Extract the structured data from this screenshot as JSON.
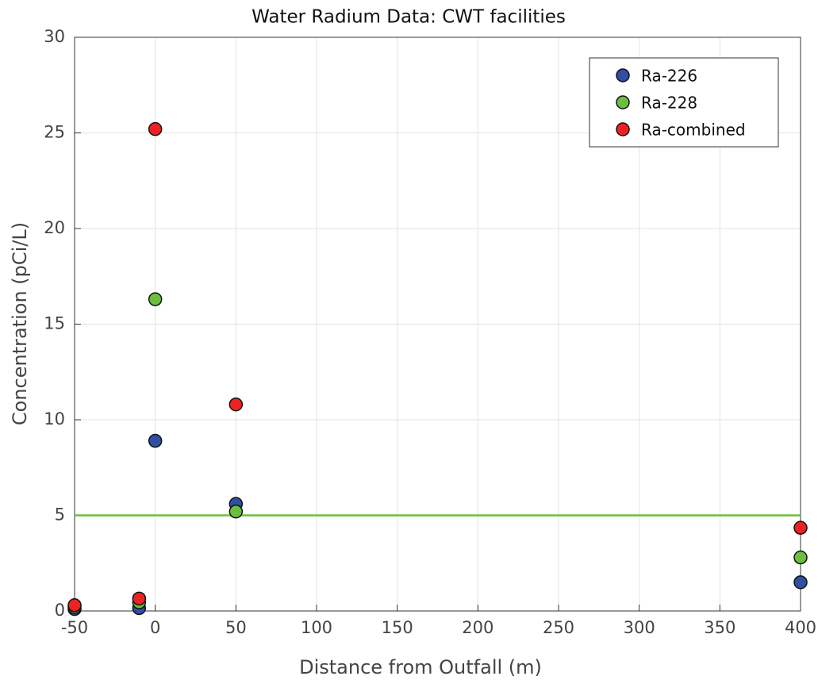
{
  "chart_data": {
    "type": "scatter",
    "title": "Water Radium Data: CWT facilities",
    "x_label": "Distance from Outfall (m)",
    "y_label": "Concentration (pCi/L)",
    "xlim": [
      -50,
      400
    ],
    "ylim": [
      0,
      30
    ],
    "xticks": [
      -50,
      0,
      50,
      100,
      150,
      200,
      250,
      300,
      350,
      400
    ],
    "yticks": [
      0,
      5,
      10,
      15,
      20,
      25,
      30
    ],
    "grid": true,
    "legend": "upper right",
    "series": [
      {
        "name": "Ra-226",
        "color": "#2f4fa3",
        "x": [
          -50,
          -10,
          0,
          50,
          400
        ],
        "values": [
          0.1,
          0.15,
          8.9,
          5.6,
          1.5
        ]
      },
      {
        "name": "Ra-228",
        "color": "#6cbf3c",
        "x": [
          -50,
          -10,
          0,
          50,
          400
        ],
        "values": [
          0.2,
          0.45,
          16.3,
          5.2,
          2.8
        ]
      },
      {
        "name": "Ra-combined",
        "color": "#ee2222",
        "x": [
          -50,
          -10,
          0,
          50,
          400
        ],
        "values": [
          0.3,
          0.65,
          25.2,
          10.8,
          4.35
        ]
      }
    ],
    "reference_line": {
      "value": 5,
      "color": "#6cbf3c"
    }
  }
}
